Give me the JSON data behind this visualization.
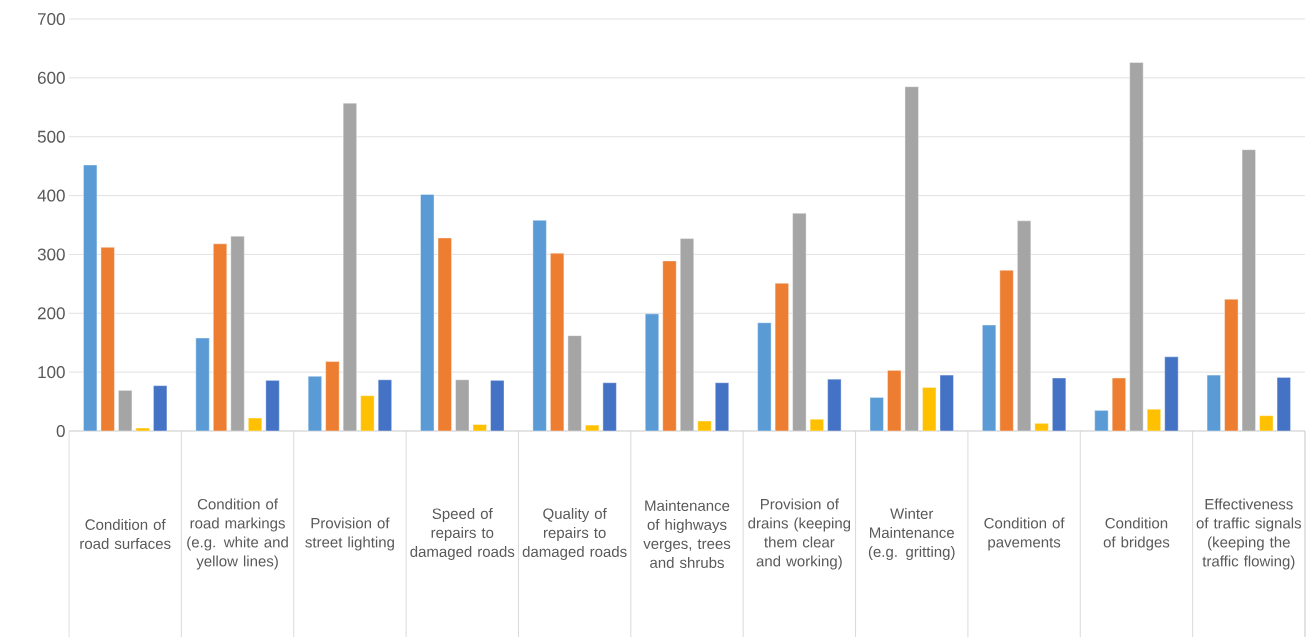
{
  "chart_data": {
    "type": "bar",
    "categories": [
      "Condition of road surfaces",
      "Condition of road markings (e.g. white and yellow lines)",
      "Provision of street lighting",
      "Speed of repairs to damaged roads",
      "Quality of repairs to damaged roads",
      "Maintenance of highways verges, trees and shrubs",
      "Provision of drains (keeping them clear and working)",
      "Winter Maintenance (e.g. gritting)",
      "Condition of pavements",
      "Condition of bridges",
      "Effectiveness of traffic signals (keeping the traffic flowing)"
    ],
    "series": [
      {
        "color": "#5b9bd5",
        "values": [
          452,
          158,
          93,
          402,
          358,
          199,
          184,
          57,
          180,
          35,
          95
        ]
      },
      {
        "color": "#ed7d31",
        "values": [
          312,
          318,
          118,
          328,
          302,
          289,
          251,
          103,
          273,
          90,
          224
        ]
      },
      {
        "color": "#a5a5a5",
        "values": [
          69,
          331,
          557,
          87,
          162,
          327,
          370,
          585,
          357,
          626,
          478
        ]
      },
      {
        "color": "#ffc000",
        "values": [
          5,
          22,
          60,
          11,
          10,
          17,
          20,
          74,
          13,
          37,
          26
        ]
      },
      {
        "color": "#4472c4",
        "values": [
          77,
          86,
          87,
          86,
          82,
          82,
          88,
          95,
          90,
          126,
          91
        ]
      }
    ],
    "ylim": [
      0,
      700
    ],
    "yticks": [
      0,
      100,
      200,
      300,
      400,
      500,
      600,
      700
    ],
    "grid": "y"
  }
}
